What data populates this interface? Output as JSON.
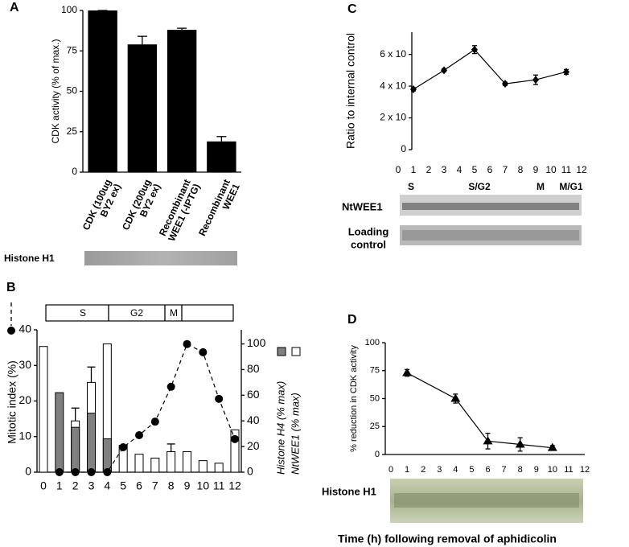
{
  "chart_data": [
    {
      "panel": "A",
      "type": "bar",
      "ylabel": "CDK activity (% of max.)",
      "categories": [
        [
          "CDK (100ug",
          "BY2 ex)"
        ],
        [
          "CDK (200ug",
          "BY2 ex)"
        ],
        [
          "Recombinant",
          "WEE1 (-IPTG)"
        ],
        [
          "Recombinant",
          "WEE1"
        ]
      ],
      "values": [
        100,
        79,
        88,
        19
      ],
      "errors": [
        0,
        5,
        1,
        3
      ],
      "color": "#000000",
      "ylim": [
        0,
        100
      ],
      "yticks": [
        0,
        25,
        50,
        75,
        100
      ],
      "gel_label": "Histone H1"
    },
    {
      "panel": "C",
      "type": "line",
      "ylabel": "Ratio to internal control",
      "marker": "diamond",
      "color": "#000000",
      "x": [
        1,
        3,
        5,
        7,
        9,
        11
      ],
      "values": [
        3.8,
        5.0,
        6.3,
        4.15,
        4.4,
        4.9
      ],
      "errors": [
        0.1,
        0.1,
        0.25,
        0.1,
        0.3,
        0.15
      ],
      "xlim": [
        0,
        12
      ],
      "xticks": [
        0,
        1,
        2,
        3,
        4,
        5,
        6,
        7,
        8,
        9,
        10,
        11,
        12
      ],
      "ylim": [
        0,
        7.4
      ],
      "yticks": [
        0,
        {
          "value": 2,
          "label": "2 x 10"
        },
        {
          "value": 4,
          "label": "4 x 10"
        },
        {
          "value": 6,
          "label": "6 x 10"
        }
      ],
      "gel_lanes": [
        "S",
        "S/G2",
        "M",
        "M/G1"
      ],
      "gel_rows": [
        "NtWEE1",
        [
          "Loading",
          "control"
        ]
      ]
    },
    {
      "panel": "B",
      "type": "combo",
      "phases": [
        "S",
        "G2",
        "M"
      ],
      "x": [
        0,
        1,
        2,
        3,
        4,
        5,
        6,
        7,
        8,
        9,
        10,
        11,
        12
      ],
      "series": [
        {
          "name": "NtWEE1 (% max)",
          "type": "bar",
          "axis": "y2",
          "color": "#ffffff",
          "values": [
            98,
            null,
            40,
            70,
            100,
            21,
            14,
            11,
            16,
            16,
            9,
            7,
            33
          ],
          "errors": [
            null,
            null,
            10,
            12,
            null,
            null,
            null,
            null,
            6,
            null,
            null,
            null,
            null
          ]
        },
        {
          "name": "Histone H4 (% max)",
          "type": "bar",
          "axis": "y2",
          "color": "#808080",
          "values": [
            null,
            62,
            35,
            46,
            26,
            null,
            null,
            null,
            null,
            null,
            null,
            null,
            null
          ]
        },
        {
          "name": "Mitotic index (%)",
          "type": "line",
          "color": "#000000",
          "values": [
            null,
            0,
            0,
            0,
            0,
            7,
            10.4,
            14.2,
            24,
            36,
            33.7,
            20.6,
            9.3
          ]
        }
      ],
      "xlim": [
        0,
        12
      ],
      "xticks": [
        0,
        1,
        2,
        3,
        4,
        5,
        6,
        7,
        8,
        9,
        10,
        11,
        12
      ],
      "ylim": [
        0,
        40
      ],
      "yticks": [
        0,
        10,
        20,
        30,
        40
      ],
      "y2lim": [
        0,
        111
      ],
      "y2ticks": [
        0,
        20,
        40,
        60,
        80,
        100
      ]
    },
    {
      "panel": "D",
      "type": "line",
      "ylabel": "% reduction in CDK activity",
      "marker": "triangle",
      "color": "#000000",
      "x": [
        1,
        4,
        6,
        8,
        10
      ],
      "values": [
        73,
        50,
        12,
        9,
        6
      ],
      "errors": [
        3,
        4,
        7,
        6,
        2
      ],
      "xlim": [
        0,
        12
      ],
      "xticks": [
        0,
        1,
        2,
        3,
        4,
        5,
        6,
        7,
        8,
        9,
        10,
        11,
        12
      ],
      "ylim": [
        0,
        100
      ],
      "yticks": [
        0,
        25,
        50,
        75,
        100
      ],
      "gel_label": "Histone H1"
    }
  ],
  "caption": "Time (h) following removal of aphidicolin"
}
